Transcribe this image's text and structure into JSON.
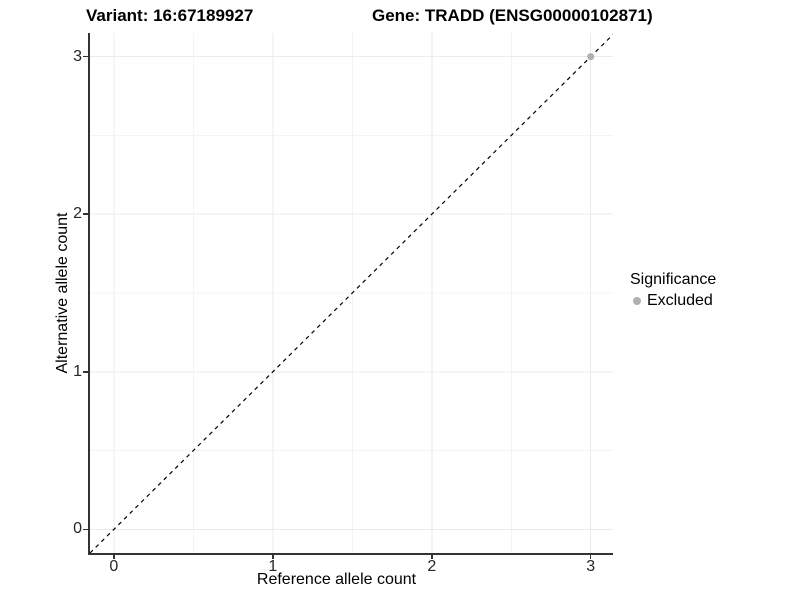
{
  "chart_data": {
    "type": "scatter",
    "titles": {
      "variant": "Variant: 16:67189927",
      "gene": "Gene: TRADD (ENSG00000102871)"
    },
    "xlabel": "Reference allele count",
    "ylabel": "Alternative allele count",
    "xlim": [
      -0.15,
      3.14
    ],
    "ylim": [
      -0.15,
      3.15
    ],
    "x_major_ticks": [
      0,
      1,
      2,
      3
    ],
    "y_major_ticks": [
      0,
      1,
      2,
      3
    ],
    "x_minor_ticks": [
      0.5,
      1.5,
      2.5
    ],
    "y_minor_ticks": [
      0.5,
      1.5,
      2.5
    ],
    "grid": true,
    "identity_line": {
      "style": "dashed",
      "equation": "y = x",
      "color": "#000000"
    },
    "series": [
      {
        "name": "Excluded",
        "color": "#b0b0b0",
        "marker": "circle",
        "points": [
          {
            "x": 3,
            "y": 3
          }
        ]
      }
    ],
    "legend": {
      "title": "Significance",
      "position": "right",
      "items": [
        {
          "label": "Excluded",
          "color": "#b0b0b0",
          "marker": "circle"
        }
      ]
    },
    "colors": {
      "background": "#ffffff",
      "grid_major": "#ebebeb",
      "grid_minor": "#f4f4f4",
      "axis_line": "#333333",
      "tick_label": "#262626"
    }
  }
}
